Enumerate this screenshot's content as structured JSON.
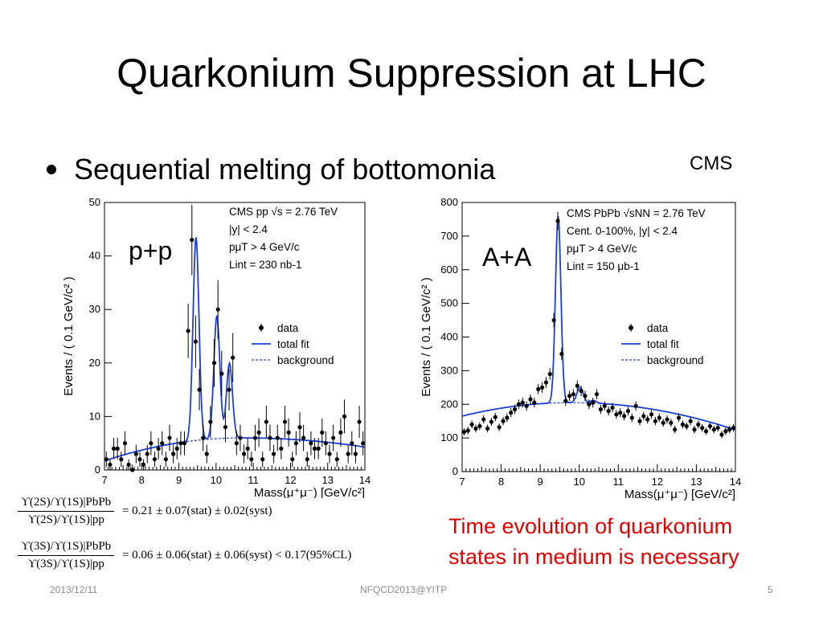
{
  "title": "Quarkonium Suppression at LHC",
  "bullet": "Sequential melting of bottomonia",
  "cms_label": "CMS",
  "label_pp": "p+p",
  "label_aa": "A+A",
  "red_text": [
    "Time evolution of quarkonium",
    "states in medium is necessary"
  ],
  "equations": [
    {
      "num": "ϒ(2S)/ϒ(1S)|PbPb",
      "den": "ϒ(2S)/ϒ(1S)|pp",
      "rhs": "= 0.21 ± 0.07(stat) ± 0.02(syst)"
    },
    {
      "num": "ϒ(3S)/ϒ(1S)|PbPb",
      "den": "ϒ(3S)/ϒ(1S)|pp",
      "rhs": "= 0.06 ± 0.06(stat) ± 0.06(syst) < 0.17(95%CL)"
    }
  ],
  "footer": {
    "date": "2013/12/11",
    "center": "NFQCD2013@YITP",
    "page": "5"
  },
  "colors": {
    "fit": "#1a3fd6",
    "red": "#e00000",
    "footer": "#8c8c8c"
  },
  "chart_data": [
    {
      "type": "scatter",
      "xlabel": "Mass(μ⁺μ⁻) [GeV/c²]",
      "ylabel": "Events / ( 0.1 GeV/c² )",
      "xlim": [
        7,
        14
      ],
      "ylim": [
        0,
        50
      ],
      "xticks": [
        "7",
        "8",
        "9",
        "10",
        "11",
        "12",
        "13",
        "14"
      ],
      "yticks": [
        "0",
        "10",
        "20",
        "30",
        "40",
        "50"
      ],
      "annotations": [
        "CMS pp √s = 2.76 TeV",
        "|y| < 2.4",
        "pμT > 4 GeV/c",
        "Lint = 230 nb-1"
      ],
      "legend": [
        "data",
        "total fit",
        "background"
      ],
      "x": [
        7.05,
        7.15,
        7.25,
        7.35,
        7.45,
        7.55,
        7.65,
        7.75,
        7.85,
        7.95,
        8.05,
        8.15,
        8.25,
        8.35,
        8.45,
        8.55,
        8.65,
        8.75,
        8.85,
        8.95,
        9.05,
        9.15,
        9.25,
        9.35,
        9.45,
        9.55,
        9.65,
        9.75,
        9.85,
        9.95,
        10.05,
        10.15,
        10.25,
        10.35,
        10.45,
        10.55,
        10.65,
        10.75,
        10.85,
        10.95,
        11.05,
        11.15,
        11.25,
        11.35,
        11.45,
        11.55,
        11.65,
        11.75,
        11.85,
        11.95,
        12.05,
        12.15,
        12.25,
        12.35,
        12.45,
        12.55,
        12.65,
        12.75,
        12.85,
        12.95,
        13.05,
        13.15,
        13.25,
        13.35,
        13.45,
        13.55,
        13.65,
        13.75,
        13.85,
        13.95
      ],
      "y": [
        2,
        1,
        4,
        4,
        2,
        5,
        1,
        0,
        3,
        2,
        1,
        3,
        5,
        2,
        4,
        5,
        2,
        6,
        3,
        4,
        5,
        5,
        26,
        43,
        24,
        15,
        6,
        3,
        9,
        20,
        30,
        18,
        8,
        15,
        21,
        5,
        6,
        3,
        4,
        2,
        6,
        7,
        2,
        9,
        6,
        3,
        6,
        4,
        9,
        7,
        2,
        5,
        8,
        6,
        2,
        5,
        4,
        4,
        7,
        5,
        3,
        6,
        2,
        7,
        10,
        3,
        5,
        3,
        9,
        5
      ]
    },
    {
      "type": "scatter",
      "xlabel": "Mass(μ⁺μ⁻) [GeV/c²]",
      "ylabel": "Events / ( 0.1 GeV/c² )",
      "xlim": [
        7,
        14
      ],
      "ylim": [
        0,
        800
      ],
      "xticks": [
        "7",
        "8",
        "9",
        "10",
        "11",
        "12",
        "13",
        "14"
      ],
      "yticks": [
        "0",
        "100",
        "200",
        "300",
        "400",
        "500",
        "600",
        "700",
        "800"
      ],
      "annotations": [
        "CMS PbPb √sNN = 2.76 TeV",
        "Cent. 0-100%, |y| < 2.4",
        "pμT > 4 GeV/c",
        "Lint = 150 μb-1"
      ],
      "legend": [
        "data",
        "total fit",
        "background"
      ],
      "x": [
        7.05,
        7.15,
        7.25,
        7.35,
        7.45,
        7.55,
        7.65,
        7.75,
        7.85,
        7.95,
        8.05,
        8.15,
        8.25,
        8.35,
        8.45,
        8.55,
        8.65,
        8.75,
        8.85,
        8.95,
        9.05,
        9.15,
        9.25,
        9.35,
        9.45,
        9.55,
        9.65,
        9.75,
        9.85,
        9.95,
        10.05,
        10.15,
        10.25,
        10.35,
        10.45,
        10.55,
        10.65,
        10.75,
        10.85,
        10.95,
        11.05,
        11.15,
        11.25,
        11.35,
        11.45,
        11.55,
        11.65,
        11.75,
        11.85,
        11.95,
        12.05,
        12.15,
        12.25,
        12.35,
        12.45,
        12.55,
        12.65,
        12.75,
        12.85,
        12.95,
        13.05,
        13.15,
        13.25,
        13.35,
        13.45,
        13.55,
        13.65,
        13.75,
        13.85,
        13.95
      ],
      "y": [
        118,
        122,
        140,
        128,
        135,
        155,
        128,
        148,
        162,
        132,
        150,
        160,
        175,
        185,
        200,
        205,
        195,
        215,
        205,
        245,
        250,
        265,
        290,
        450,
        745,
        350,
        210,
        225,
        230,
        255,
        240,
        225,
        200,
        205,
        230,
        185,
        195,
        180,
        190,
        170,
        175,
        165,
        180,
        160,
        195,
        150,
        165,
        155,
        170,
        150,
        160,
        145,
        155,
        145,
        125,
        160,
        140,
        135,
        150,
        125,
        140,
        130,
        120,
        135,
        125,
        130,
        110,
        120,
        125,
        130
      ]
    }
  ]
}
